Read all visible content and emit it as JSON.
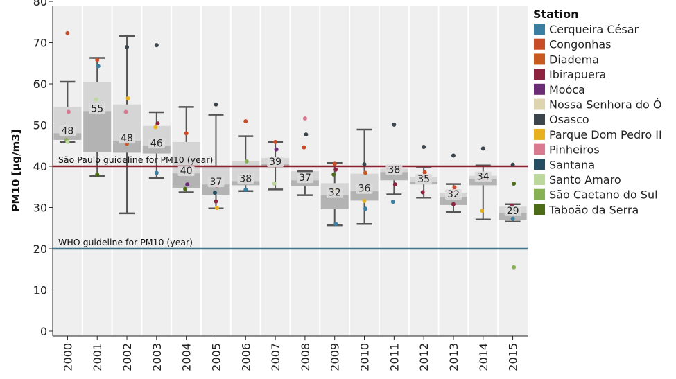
{
  "chart_data": {
    "type": "boxplot",
    "ylabel": "PM10 [µg/m3]",
    "ylim": [
      0,
      80
    ],
    "yticks": [
      0,
      10,
      20,
      30,
      40,
      50,
      60,
      70,
      80
    ],
    "categories": [
      "2000",
      "2001",
      "2002",
      "2003",
      "2004",
      "2005",
      "2006",
      "2007",
      "2008",
      "2009",
      "2010",
      "2011",
      "2012",
      "2013",
      "2014",
      "2015"
    ],
    "boxes": [
      {
        "year": "2000",
        "min": 45.9,
        "q1": 46.4,
        "median": 48,
        "q3": 54.4,
        "max": 60.5,
        "label": "48"
      },
      {
        "year": "2001",
        "min": 37.6,
        "q1": 43.4,
        "median": 53.4,
        "q3": 60.4,
        "max": 66.3,
        "label": "55"
      },
      {
        "year": "2002",
        "min": 28.6,
        "q1": 43.3,
        "median": 46.2,
        "q3": 55.0,
        "max": 71.6,
        "label": "48"
      },
      {
        "year": "2003",
        "min": 37.1,
        "q1": 43.1,
        "median": 45.0,
        "q3": 49.8,
        "max": 53.1,
        "label": "46"
      },
      {
        "year": "2004",
        "min": 33.7,
        "q1": 34.8,
        "median": 38.3,
        "q3": 45.9,
        "max": 54.4,
        "label": "40"
      },
      {
        "year": "2005",
        "min": 29.8,
        "q1": 33.1,
        "median": 35.6,
        "q3": 40.2,
        "max": 52.5,
        "label": "37"
      },
      {
        "year": "2006",
        "min": 34.0,
        "q1": 35.4,
        "median": 36.4,
        "q3": 41.2,
        "max": 47.3,
        "label": "38"
      },
      {
        "year": "2007",
        "min": 34.4,
        "q1": 39.8,
        "median": 40.5,
        "q3": 42.0,
        "max": 45.9,
        "label": "39"
      },
      {
        "year": "2008",
        "min": 33.0,
        "q1": 35.2,
        "median": 36.6,
        "q3": 38.8,
        "max": 38.8,
        "label": "37"
      },
      {
        "year": "2009",
        "min": 25.7,
        "q1": 29.6,
        "median": 33.0,
        "q3": 35.9,
        "max": 40.8,
        "label": "32"
      },
      {
        "year": "2010",
        "min": 26.0,
        "q1": 31.7,
        "median": 34.0,
        "q3": 38.2,
        "max": 48.9,
        "label": "36"
      },
      {
        "year": "2011",
        "min": 33.2,
        "q1": 36.6,
        "median": 38.6,
        "q3": 39.4,
        "max": 39.4,
        "label": "38"
      },
      {
        "year": "2012",
        "min": 32.4,
        "q1": 35.6,
        "median": 36.3,
        "q3": 37.3,
        "max": 39.9,
        "label": "35"
      },
      {
        "year": "2013",
        "min": 28.9,
        "q1": 30.6,
        "median": 32.6,
        "q3": 33.6,
        "max": 35.7,
        "label": "32"
      },
      {
        "year": "2014",
        "min": 27.1,
        "q1": 35.4,
        "median": 36.9,
        "q3": 37.7,
        "max": 40.2,
        "label": "34"
      },
      {
        "year": "2015",
        "min": 26.6,
        "q1": 26.9,
        "median": 28.6,
        "q3": 30.2,
        "max": 30.8,
        "label": "29"
      }
    ],
    "points": [
      {
        "year": "2000",
        "value": 72.3,
        "station": "Congonhas"
      },
      {
        "year": "2000",
        "value": 53.2,
        "station": "Pinheiros"
      },
      {
        "year": "2000",
        "value": 46.4,
        "station": "São Caetano do Sul"
      },
      {
        "year": "2000",
        "value": 45.9,
        "station": "Santo Amaro"
      },
      {
        "year": "2001",
        "value": 65.8,
        "station": "Congonhas"
      },
      {
        "year": "2001",
        "value": 64.3,
        "station": "Cerqueira César"
      },
      {
        "year": "2001",
        "value": 56.2,
        "station": "Santo Amaro"
      },
      {
        "year": "2001",
        "value": 38.0,
        "station": "Taboão da Serra"
      },
      {
        "year": "2002",
        "value": 68.9,
        "station": "Osasco"
      },
      {
        "year": "2002",
        "value": 56.5,
        "station": "Parque Dom Pedro II"
      },
      {
        "year": "2002",
        "value": 53.2,
        "station": "Pinheiros"
      },
      {
        "year": "2002",
        "value": 45.5,
        "station": "Diadema"
      },
      {
        "year": "2003",
        "value": 69.4,
        "station": "Osasco"
      },
      {
        "year": "2003",
        "value": 50.4,
        "station": "Ibirapuera"
      },
      {
        "year": "2003",
        "value": 49.5,
        "station": "Parque Dom Pedro II"
      },
      {
        "year": "2003",
        "value": 38.4,
        "station": "Cerqueira César"
      },
      {
        "year": "2004",
        "value": 48.0,
        "station": "Congonhas"
      },
      {
        "year": "2004",
        "value": 35.6,
        "station": "Moóca"
      },
      {
        "year": "2004",
        "value": 34.5,
        "station": "Taboão da Serra"
      },
      {
        "year": "2005",
        "value": 55.0,
        "station": "Osasco"
      },
      {
        "year": "2005",
        "value": 35.3,
        "station": "Pinheiros"
      },
      {
        "year": "2005",
        "value": 33.6,
        "station": "Santana"
      },
      {
        "year": "2005",
        "value": 31.5,
        "station": "Ibirapuera"
      },
      {
        "year": "2005",
        "value": 29.9,
        "station": "Parque Dom Pedro II"
      },
      {
        "year": "2006",
        "value": 50.9,
        "station": "Congonhas"
      },
      {
        "year": "2006",
        "value": 41.2,
        "station": "São Caetano do Sul"
      },
      {
        "year": "2006",
        "value": 36.3,
        "station": "Moóca"
      },
      {
        "year": "2006",
        "value": 34.3,
        "station": "Cerqueira César"
      },
      {
        "year": "2007",
        "value": 45.9,
        "station": "Congonhas"
      },
      {
        "year": "2007",
        "value": 44.1,
        "station": "Moóca"
      },
      {
        "year": "2007",
        "value": 35.8,
        "station": "Santo Amaro"
      },
      {
        "year": "2008",
        "value": 51.6,
        "station": "Pinheiros"
      },
      {
        "year": "2008",
        "value": 47.7,
        "station": "Osasco"
      },
      {
        "year": "2008",
        "value": 44.6,
        "station": "Congonhas"
      },
      {
        "year": "2009",
        "value": 40.6,
        "station": "Congonhas"
      },
      {
        "year": "2009",
        "value": 39.2,
        "station": "Ibirapuera"
      },
      {
        "year": "2009",
        "value": 38.0,
        "station": "Taboão da Serra"
      },
      {
        "year": "2009",
        "value": 34.2,
        "station": "Parque Dom Pedro II"
      },
      {
        "year": "2009",
        "value": 26.0,
        "station": "Cerqueira César"
      },
      {
        "year": "2010",
        "value": 40.5,
        "station": "Osasco"
      },
      {
        "year": "2010",
        "value": 38.4,
        "station": "Diadema"
      },
      {
        "year": "2010",
        "value": 33.8,
        "station": "Santo Amaro"
      },
      {
        "year": "2010",
        "value": 31.6,
        "station": "Parque Dom Pedro II"
      },
      {
        "year": "2010",
        "value": 29.7,
        "station": "Cerqueira César"
      },
      {
        "year": "2011",
        "value": 50.1,
        "station": "Osasco"
      },
      {
        "year": "2011",
        "value": 35.6,
        "station": "Ibirapuera"
      },
      {
        "year": "2011",
        "value": 31.4,
        "station": "Cerqueira César"
      },
      {
        "year": "2012",
        "value": 44.7,
        "station": "Osasco"
      },
      {
        "year": "2012",
        "value": 38.5,
        "station": "Congonhas"
      },
      {
        "year": "2012",
        "value": 33.7,
        "station": "Ibirapuera"
      },
      {
        "year": "2013",
        "value": 42.6,
        "station": "Osasco"
      },
      {
        "year": "2013",
        "value": 34.9,
        "station": "Congonhas"
      },
      {
        "year": "2013",
        "value": 33.9,
        "station": "Pinheiros"
      },
      {
        "year": "2013",
        "value": 30.8,
        "station": "Ibirapuera"
      },
      {
        "year": "2014",
        "value": 44.3,
        "station": "Osasco"
      },
      {
        "year": "2014",
        "value": 36.8,
        "station": "Pinheiros"
      },
      {
        "year": "2014",
        "value": 29.2,
        "station": "Parque Dom Pedro II"
      },
      {
        "year": "2015",
        "value": 40.4,
        "station": "Osasco"
      },
      {
        "year": "2015",
        "value": 35.8,
        "station": "Taboão da Serra"
      },
      {
        "year": "2015",
        "value": 30.5,
        "station": "Ibirapuera"
      },
      {
        "year": "2015",
        "value": 27.3,
        "station": "Cerqueira César"
      },
      {
        "year": "2015",
        "value": 15.5,
        "station": "São Caetano do Sul"
      }
    ],
    "reference_lines": [
      {
        "value": 40,
        "label": "São Paulo guideline for PM10 (year)",
        "color": "#8b2232"
      },
      {
        "value": 20,
        "label": "WHO guideline for PM10 (year)",
        "color": "#3a7694"
      }
    ],
    "legend": {
      "title": "Station",
      "position": "right",
      "entries": [
        {
          "name": "Cerqueira César",
          "color": "#3a7ea1"
        },
        {
          "name": "Congonhas",
          "color": "#c64d28"
        },
        {
          "name": "Diadema",
          "color": "#c85a21"
        },
        {
          "name": "Ibirapuera",
          "color": "#8e2340"
        },
        {
          "name": "Moóca",
          "color": "#6b2c76"
        },
        {
          "name": "Nossa Senhora do Ó",
          "color": "#ded5b0"
        },
        {
          "name": "Osasco",
          "color": "#3d454c"
        },
        {
          "name": "Parque Dom Pedro II",
          "color": "#e6b31f"
        },
        {
          "name": "Pinheiros",
          "color": "#d97a91"
        },
        {
          "name": "Santana",
          "color": "#254e63"
        },
        {
          "name": "Santo Amaro",
          "color": "#bcd99b"
        },
        {
          "name": "São Caetano do Sul",
          "color": "#86b255"
        },
        {
          "name": "Taboão da Serra",
          "color": "#4d6c18"
        }
      ]
    }
  }
}
